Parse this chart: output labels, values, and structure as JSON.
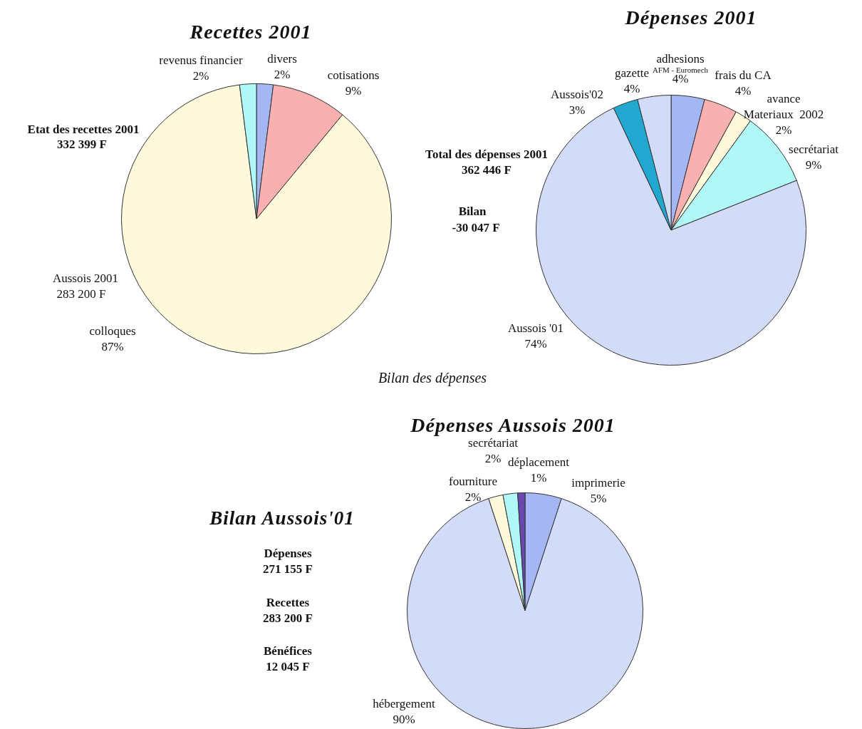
{
  "chart_data": [
    {
      "type": "pie",
      "title": "Recettes 2001",
      "categories": [
        "divers",
        "cotisations",
        "colloques",
        "revenus financier"
      ],
      "values": [
        2,
        9,
        87,
        2
      ],
      "colors": [
        "#a4b6f4",
        "#f8b0b0",
        "#fff9dc",
        "#b0f8f8"
      ],
      "value_labels": [
        "2%",
        "9%",
        "87%",
        "2%"
      ],
      "annotations": [
        "Etat des recettes 2001",
        "332 399 F",
        "Aussois 2001",
        "283 200 F"
      ]
    },
    {
      "type": "pie",
      "title": "Dépenses 2001",
      "categories": [
        "adhesions",
        "frais du CA",
        "avance\nMateriaux  2002",
        "secrétariat",
        "Aussois '01",
        "Aussois'02",
        "gazette"
      ],
      "values": [
        4,
        4,
        2,
        9,
        74,
        3,
        4
      ],
      "colors": [
        "#a4b6f4",
        "#f8b0b0",
        "#fff9dc",
        "#b0f8f8",
        "#d2dcf8",
        "#22a8d0",
        "#d2dcf8"
      ],
      "value_labels": [
        "4%",
        "4%",
        "2%",
        "9%",
        "74%",
        "3%",
        "4%"
      ],
      "annotations": [
        "Total des dépenses 2001",
        "362 446 F",
        "Bilan",
        "-30 047 F",
        "AFM - Euromech",
        "Bilan des dépenses"
      ]
    },
    {
      "type": "pie",
      "title": "Dépenses Aussois 2001",
      "categories": [
        "imprimerie",
        "hébergement",
        "fourniture",
        "secrétariat",
        "déplacement"
      ],
      "values": [
        5,
        90,
        2,
        2,
        1
      ],
      "colors": [
        "#a4b6f4",
        "#d2dcf8",
        "#fff9dc",
        "#b0f8f8",
        "#6a48b0"
      ],
      "value_labels": [
        "5%",
        "90%",
        "2%",
        "2%",
        "1%"
      ],
      "annotations": [
        "Bilan Aussois'01",
        "Dépenses",
        "271 155 F",
        "Recettes",
        "283 200 F",
        "Bénéfices",
        "12 045 F"
      ]
    }
  ]
}
